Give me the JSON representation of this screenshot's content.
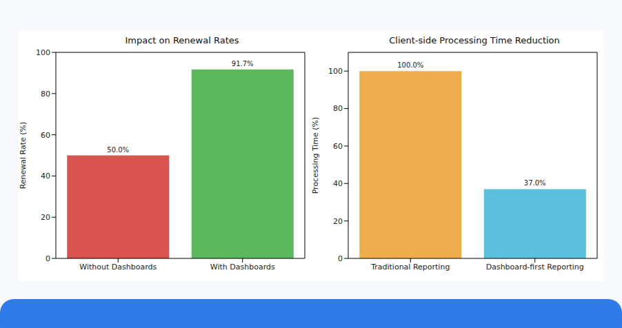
{
  "chart_data": [
    {
      "type": "bar",
      "title": "Impact on Renewal Rates",
      "y_label": "Renewal Rate (%)",
      "categories": [
        "Without Dashboards",
        "With Dashboards"
      ],
      "values": [
        50.0,
        91.7
      ],
      "value_labels": [
        "50.0%",
        "91.7%"
      ],
      "colors": [
        "#d9534f",
        "#5cb85c"
      ],
      "ylim": [
        0,
        100
      ],
      "yticks": [
        0,
        20,
        40,
        60,
        80,
        100
      ],
      "data_labels": true,
      "grid": false
    },
    {
      "type": "bar",
      "title": "Client-side Processing Time Reduction",
      "y_label": "Processing Time (%)",
      "categories": [
        "Traditional Reporting",
        "Dashboard-first Reporting"
      ],
      "values": [
        100.0,
        37.0
      ],
      "value_labels": [
        "100.0%",
        "37.0%"
      ],
      "colors": [
        "#f0ad4e",
        "#5bc0de"
      ],
      "ylim": [
        0,
        110
      ],
      "yticks": [
        0,
        20,
        40,
        60,
        80,
        100
      ],
      "data_labels": true,
      "grid": false
    }
  ]
}
